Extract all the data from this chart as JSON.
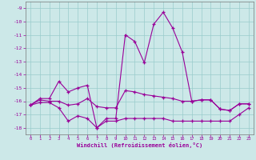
{
  "xlabel": "Windchill (Refroidissement éolien,°C)",
  "background_color": "#cce8e8",
  "grid_color": "#99cccc",
  "line_color": "#990099",
  "xlim": [
    -0.5,
    23.5
  ],
  "ylim": [
    -18.5,
    -8.5
  ],
  "yticks": [
    -9,
    -10,
    -11,
    -12,
    -13,
    -14,
    -15,
    -16,
    -17,
    -18
  ],
  "xticks": [
    0,
    1,
    2,
    3,
    4,
    5,
    6,
    7,
    8,
    9,
    10,
    11,
    12,
    13,
    14,
    15,
    16,
    17,
    18,
    19,
    20,
    21,
    22,
    23
  ],
  "line1": [
    -16.3,
    -15.8,
    -15.8,
    -14.5,
    -15.3,
    -15.0,
    -14.8,
    -18.0,
    -17.3,
    -17.3,
    -11.0,
    -11.5,
    -13.1,
    -10.2,
    -9.3,
    -10.5,
    -12.3,
    -16.0,
    -15.9,
    -15.9,
    -16.6,
    -16.7,
    -16.2,
    -16.2
  ],
  "line2": [
    -16.3,
    -15.9,
    -16.0,
    -16.0,
    -16.3,
    -16.2,
    -15.8,
    -16.4,
    -16.5,
    -16.5,
    -15.2,
    -15.3,
    -15.5,
    -15.6,
    -15.7,
    -15.8,
    -16.0,
    -16.0,
    -15.9,
    -15.9,
    -16.6,
    -16.7,
    -16.2,
    -16.2
  ],
  "line3": [
    -16.3,
    -16.1,
    -16.1,
    -16.5,
    -17.5,
    -17.1,
    -17.3,
    -18.0,
    -17.5,
    -17.5,
    -17.3,
    -17.3,
    -17.3,
    -17.3,
    -17.3,
    -17.5,
    -17.5,
    -17.5,
    -17.5,
    -17.5,
    -17.5,
    -17.5,
    -17.0,
    -16.5
  ]
}
